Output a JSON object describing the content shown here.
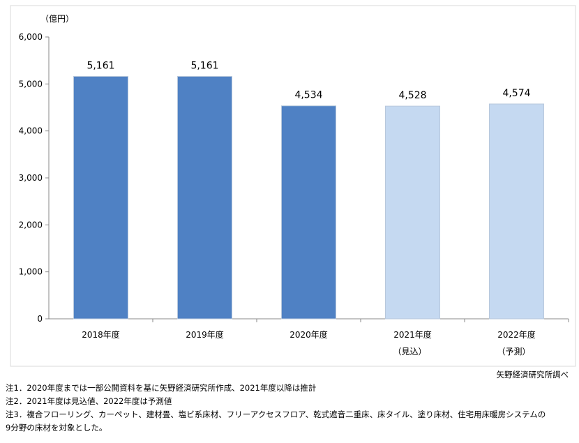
{
  "chart_data": {
    "type": "bar",
    "unit_label": "（億円）",
    "categories": [
      "2018年度",
      "2019年度",
      "2020年度",
      "2021年度",
      "2022年度"
    ],
    "category_notes": [
      null,
      null,
      null,
      "（見込）",
      "（予測）"
    ],
    "values": [
      5161,
      5161,
      4534,
      4528,
      4574
    ],
    "value_labels": [
      "5,161",
      "5,161",
      "4,534",
      "4,528",
      "4,574"
    ],
    "colors": [
      "#4f81c4",
      "#4f81c4",
      "#4f81c4",
      "#c5d9f1",
      "#c5d9f1"
    ],
    "ylim": [
      0,
      6000
    ],
    "yticks": [
      0,
      {
        "value": 1000,
        "label": "1,000"
      },
      {
        "value": 2000,
        "label": "2,000"
      },
      {
        "value": 3000,
        "label": "3,000"
      },
      {
        "value": 4000,
        "label": "4,000"
      },
      {
        "value": 5000,
        "label": "5,000"
      },
      {
        "value": 6000,
        "label": "6,000"
      }
    ]
  },
  "source": "矢野経済研究所調べ",
  "notes": [
    "注1．2020年度までは一部公開資料を基に矢野経済研究所作成、2021年度以降は推計",
    "注2．2021年度は見込値、2022年度は予測値",
    "注3．複合フローリング、カーペット、建材畳、塩ビ系床材、フリーアクセスフロア、乾式遮音二重床、床タイル、塗り床材、住宅用床暖房システムの",
    "9分野の床材を対象とした。"
  ]
}
